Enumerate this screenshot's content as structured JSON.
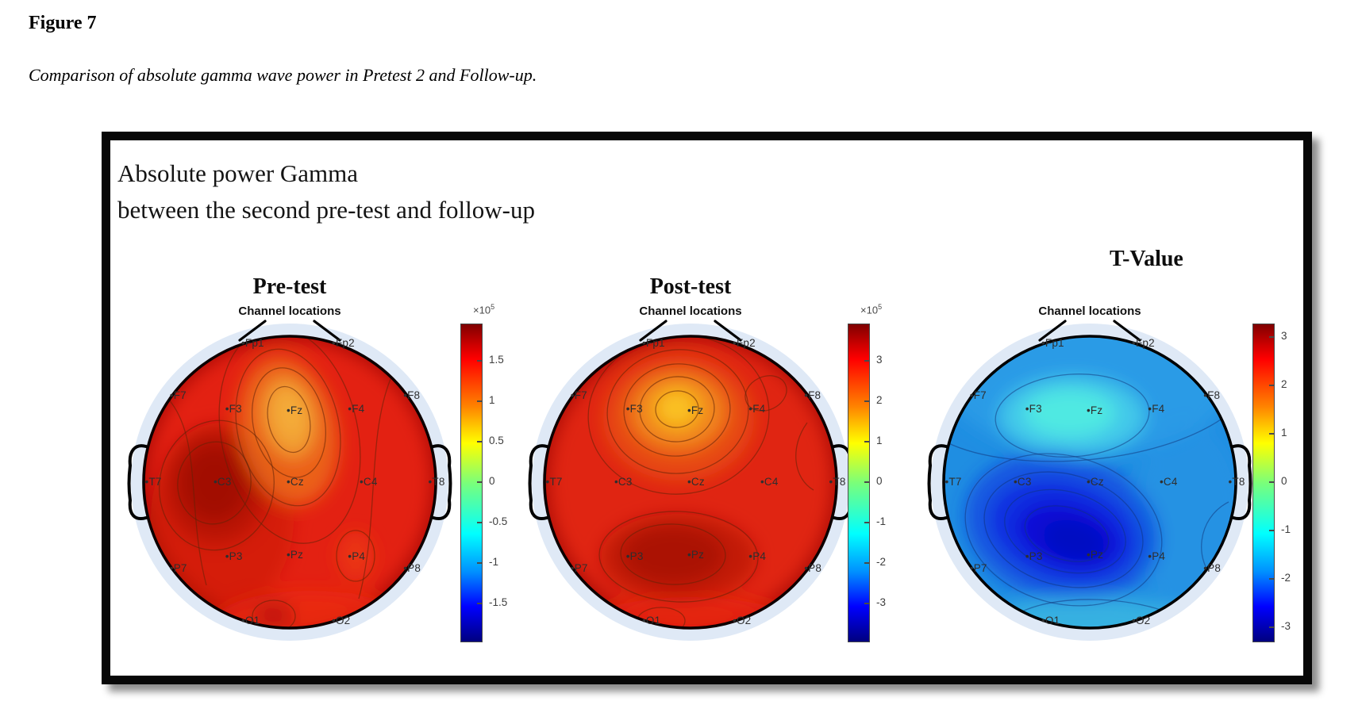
{
  "page": {
    "figure_label": "Figure 7",
    "caption": "Comparison of absolute gamma wave power in Pretest 2 and Follow-up."
  },
  "figure": {
    "title_line1": "Absolute power Gamma",
    "title_line2": "between the second pre-test and follow-up",
    "tvalue_label": "T-Value"
  },
  "chart_data": {
    "type": "heatmap",
    "subtype": "EEG scalp topography (topoplot), jet colormap",
    "electrodes": [
      {
        "label": "Fp1",
        "x": -0.31,
        "y": -0.95
      },
      {
        "label": "Fp2",
        "x": 0.31,
        "y": -0.95
      },
      {
        "label": "F7",
        "x": -0.8,
        "y": -0.59
      },
      {
        "label": "F3",
        "x": -0.42,
        "y": -0.5
      },
      {
        "label": "Fz",
        "x": 0.0,
        "y": -0.49
      },
      {
        "label": "F4",
        "x": 0.42,
        "y": -0.5
      },
      {
        "label": "F8",
        "x": 0.8,
        "y": -0.59
      },
      {
        "label": "T7",
        "x": -0.97,
        "y": 0.0
      },
      {
        "label": "C3",
        "x": -0.5,
        "y": 0.0
      },
      {
        "label": "Cz",
        "x": 0.0,
        "y": 0.0
      },
      {
        "label": "C4",
        "x": 0.5,
        "y": 0.0
      },
      {
        "label": "T8",
        "x": 0.97,
        "y": 0.0
      },
      {
        "label": "P7",
        "x": -0.8,
        "y": 0.59
      },
      {
        "label": "P3",
        "x": -0.42,
        "y": 0.51
      },
      {
        "label": "Pz",
        "x": 0.0,
        "y": 0.5
      },
      {
        "label": "P4",
        "x": 0.42,
        "y": 0.51
      },
      {
        "label": "P8",
        "x": 0.8,
        "y": 0.59
      },
      {
        "label": "O1",
        "x": -0.31,
        "y": 0.95
      },
      {
        "label": "O2",
        "x": 0.31,
        "y": 0.95
      }
    ],
    "maps": [
      {
        "title": "Pre-test",
        "subtitle": "Channel locations",
        "summary": "Scalp mostly bright red (high absolute gamma power); local orange minimum around Fz extending toward Fp1; darkest-red maximum around C3; small contour ring near P4.",
        "colorbar": {
          "multiplier_base": "×10",
          "multiplier_exp": "5",
          "ticks": [
            1.5,
            1,
            0.5,
            0,
            -0.5,
            -1,
            -1.5
          ],
          "range": [
            -1.96,
            1.96
          ]
        }
      },
      {
        "title": "Post-test",
        "subtitle": "Channel locations",
        "summary": "Scalp bright red; pronounced orange-yellow minimum centered between F3 and Fz; darker red region over P3–Pz; small contour ring near Fp2/F8.",
        "colorbar": {
          "multiplier_base": "×10",
          "multiplier_exp": "5",
          "ticks": [
            3,
            2,
            1,
            0,
            -1,
            -2,
            -3
          ],
          "range": [
            -3.92,
            3.92
          ]
        }
      },
      {
        "title": "",
        "subtitle": "Channel locations",
        "summary": "T-values negative over the whole scalp (blue); values closest to zero (cyan) around F3–Fz; strongest negative t-values (dark blue) over C3–P3–Pz.",
        "colorbar": {
          "multiplier_base": "",
          "multiplier_exp": "",
          "ticks": [
            3,
            2,
            1,
            0,
            -1,
            -2,
            -3
          ],
          "range": [
            -3.28,
            3.28
          ]
        }
      }
    ]
  }
}
